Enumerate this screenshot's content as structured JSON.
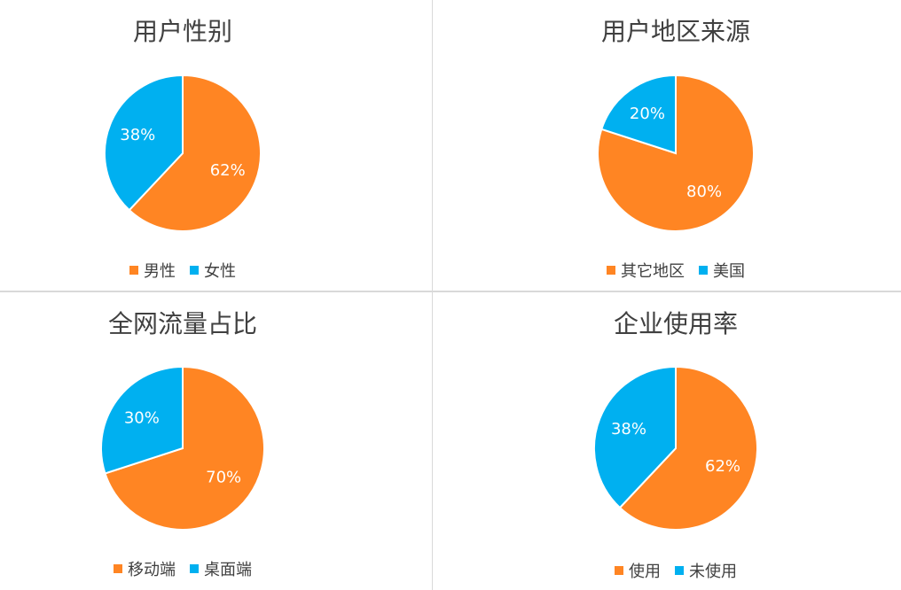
{
  "colors": {
    "orange": "#FF8523",
    "blue": "#00B0F0"
  },
  "chart_data": [
    {
      "type": "pie",
      "title": "用户性别",
      "categories": [
        "男性",
        "女性"
      ],
      "values": [
        62,
        38
      ],
      "labels": [
        "62%",
        "38%"
      ],
      "colors": [
        "#FF8523",
        "#00B0F0"
      ],
      "legend": "bottom"
    },
    {
      "type": "pie",
      "title": "用户地区来源",
      "categories": [
        "其它地区",
        "美国"
      ],
      "values": [
        80,
        20
      ],
      "labels": [
        "80%",
        "20%"
      ],
      "colors": [
        "#FF8523",
        "#00B0F0"
      ],
      "legend": "bottom"
    },
    {
      "type": "pie",
      "title": "全网流量占比",
      "categories": [
        "移动端",
        "桌面端"
      ],
      "values": [
        70,
        30
      ],
      "labels": [
        "70%",
        "30%"
      ],
      "colors": [
        "#FF8523",
        "#00B0F0"
      ],
      "legend": "bottom"
    },
    {
      "type": "pie",
      "title": "企业使用率",
      "categories": [
        "使用",
        "未使用"
      ],
      "values": [
        62,
        38
      ],
      "labels": [
        "62%",
        "38%"
      ],
      "colors": [
        "#FF8523",
        "#00B0F0"
      ],
      "legend": "bottom"
    }
  ]
}
